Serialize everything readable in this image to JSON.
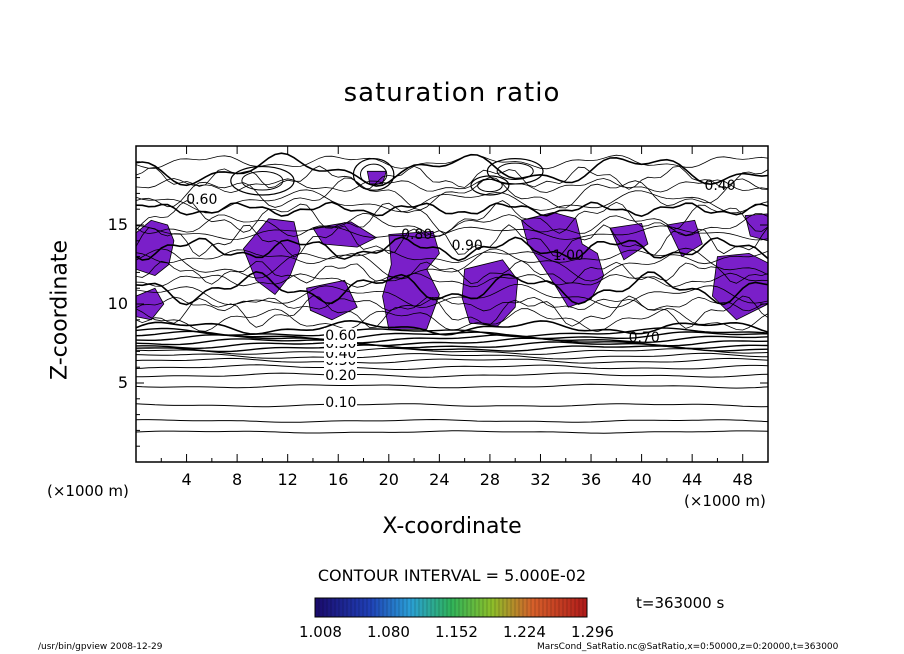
{
  "chart_data": {
    "type": "contour",
    "title": "saturation ratio",
    "xlabel": "X-coordinate",
    "ylabel": "Z-coordinate",
    "x_unit": "(×1000 m)",
    "z_unit": "(×1000 m)",
    "xlim": [
      0,
      50
    ],
    "ylim": [
      0,
      20
    ],
    "x_ticks": [
      4,
      8,
      12,
      16,
      20,
      24,
      28,
      32,
      36,
      40,
      44,
      48
    ],
    "y_ticks": [
      5,
      10,
      15
    ],
    "contour_interval_label": "CONTOUR INTERVAL = 5.000E-02",
    "contour_labels": [
      "0.10",
      "0.20",
      "0.30",
      "0.40",
      "0.50",
      "0.60",
      "0.80",
      "0.90",
      "1.00",
      "0.40",
      "0.60",
      "0.70"
    ],
    "shading_colorbar": {
      "ticks": [
        "1.008",
        "1.080",
        "1.152",
        "1.224",
        "1.296"
      ],
      "range": [
        1.008,
        1.296
      ]
    },
    "fill_color": "#7a1fc9",
    "time_label": "t=363000 s"
  },
  "footer": {
    "left": "/usr/bin/gpview   2008-12-29",
    "right": "MarsCond_SatRatio.nc@SatRatio,x=0:50000,z=0:20000,t=363000"
  }
}
